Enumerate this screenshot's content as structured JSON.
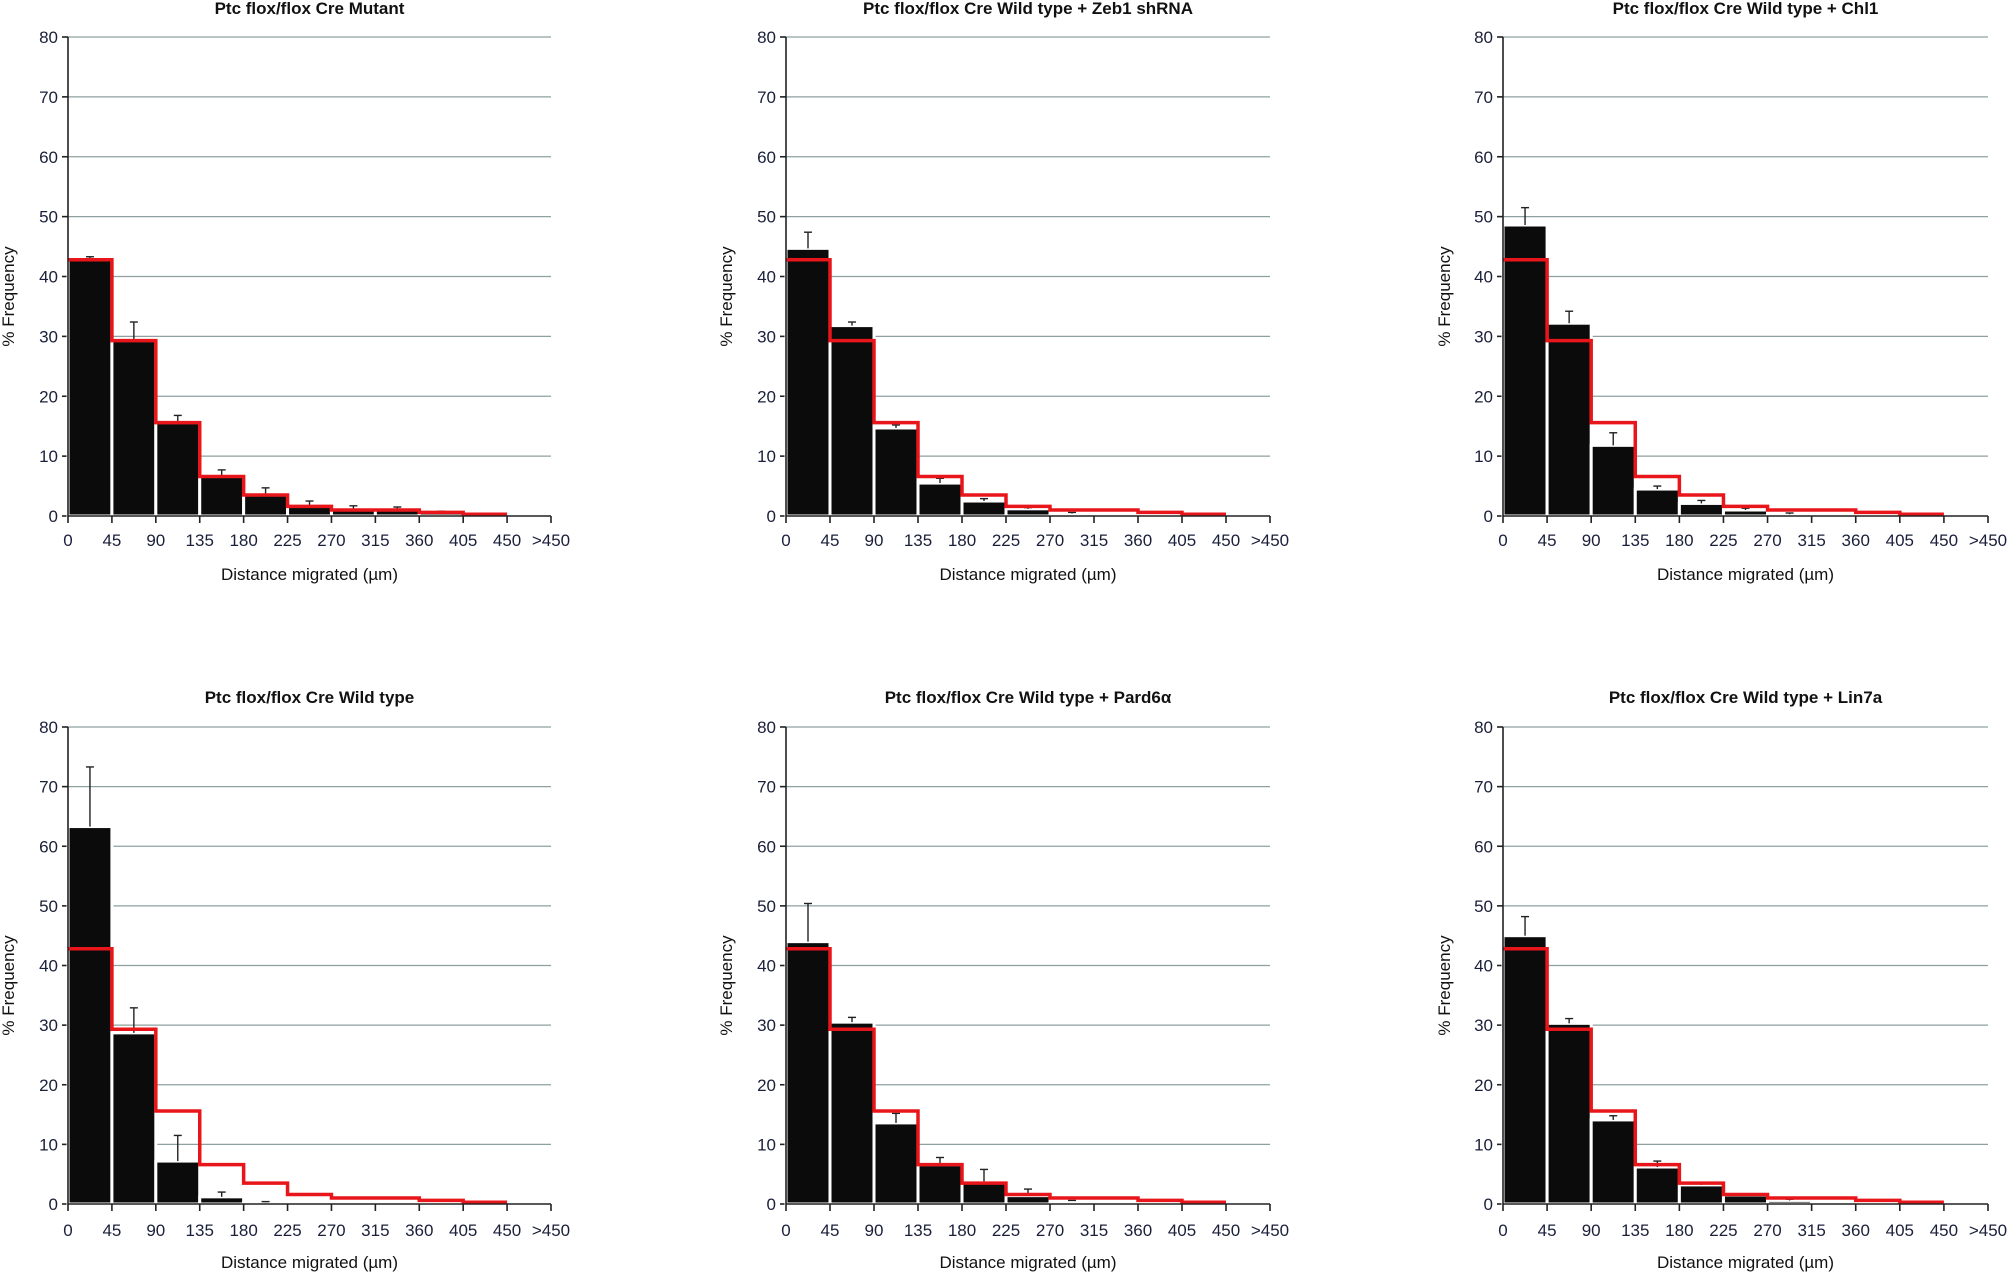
{
  "chart_data": [
    {
      "type": "bar",
      "title": "Ptc flox/flox Cre Mutant",
      "xlabel": "Distance migrated (µm)",
      "ylabel": "% Frequency",
      "ylim": [
        0,
        80
      ],
      "yticks": [
        "0",
        "10",
        "20",
        "30",
        "40",
        "50",
        "60",
        "70",
        "80"
      ],
      "xticks": [
        "0",
        "45",
        "90",
        "135",
        "180",
        "225",
        "270",
        "315",
        "360",
        "405",
        "450",
        ">450"
      ],
      "grid": true,
      "series": [
        {
          "name": "mean",
          "values": [
            42.8,
            29.3,
            15.6,
            6.6,
            3.5,
            1.6,
            1.0,
            1.0,
            0.6,
            0.3,
            0
          ],
          "err_upper": [
            43.3,
            32.4,
            16.8,
            7.7,
            4.7,
            2.5,
            1.7,
            1.5,
            0.8,
            0.4,
            0
          ]
        },
        {
          "name": "reference (Mutant)",
          "values": [
            42.8,
            29.3,
            15.6,
            6.6,
            3.5,
            1.6,
            1.0,
            1.0,
            0.6,
            0.3
          ]
        }
      ]
    },
    {
      "type": "bar",
      "title": "Ptc flox/flox Cre Wild type + Zeb1 shRNA",
      "xlabel": "Distance migrated (µm)",
      "ylabel": "% Frequency",
      "ylim": [
        0,
        80
      ],
      "yticks": [
        "0",
        "10",
        "20",
        "30",
        "40",
        "50",
        "60",
        "70",
        "80"
      ],
      "xticks": [
        "0",
        "45",
        "90",
        "135",
        "180",
        "225",
        "270",
        "315",
        "360",
        "405",
        "450",
        ">450"
      ],
      "grid": true,
      "series": [
        {
          "name": "mean",
          "values": [
            44.7,
            31.8,
            14.7,
            5.5,
            2.5,
            1.2,
            0.4,
            0.3,
            0,
            0,
            0
          ],
          "err_upper": [
            47.4,
            32.4,
            15.2,
            6.3,
            2.9,
            1.4,
            0.6,
            0.3,
            0,
            0,
            0
          ]
        },
        {
          "name": "reference (Mutant)",
          "values": [
            42.8,
            29.3,
            15.6,
            6.6,
            3.5,
            1.6,
            1.0,
            1.0,
            0.6,
            0.3
          ]
        }
      ]
    },
    {
      "type": "bar",
      "title": "Ptc flox/flox Cre Wild type + Chl1",
      "xlabel": "Distance migrated (µm)",
      "ylabel": "% Frequency",
      "ylim": [
        0,
        80
      ],
      "yticks": [
        "0",
        "10",
        "20",
        "30",
        "40",
        "50",
        "60",
        "70",
        "80"
      ],
      "xticks": [
        "0",
        "45",
        "90",
        "135",
        "180",
        "225",
        "270",
        "315",
        "360",
        "405",
        "450",
        ">450"
      ],
      "grid": true,
      "series": [
        {
          "name": "mean",
          "values": [
            48.6,
            32.2,
            11.8,
            4.5,
            2.1,
            1.0,
            0.3,
            0.2,
            0.2,
            0,
            0
          ],
          "err_upper": [
            51.5,
            34.2,
            13.9,
            5.0,
            2.6,
            1.3,
            0.5,
            0.2,
            0.2,
            0,
            0
          ]
        },
        {
          "name": "reference (Mutant)",
          "values": [
            42.8,
            29.3,
            15.6,
            6.6,
            3.5,
            1.6,
            1.0,
            1.0,
            0.6,
            0.3
          ]
        }
      ]
    },
    {
      "type": "bar",
      "title": "Ptc flox/flox Cre Wild type",
      "xlabel": "Distance migrated (µm)",
      "ylabel": "% Frequency",
      "ylim": [
        0,
        80
      ],
      "yticks": [
        "0",
        "10",
        "20",
        "30",
        "40",
        "50",
        "60",
        "70",
        "80"
      ],
      "xticks": [
        "0",
        "45",
        "90",
        "135",
        "180",
        "225",
        "270",
        "315",
        "360",
        "405",
        "450",
        ">450"
      ],
      "grid": true,
      "series": [
        {
          "name": "mean",
          "values": [
            63.3,
            28.7,
            7.2,
            1.2,
            0.3,
            0.2,
            0,
            0,
            0,
            0,
            0
          ],
          "err_upper": [
            73.3,
            32.9,
            11.5,
            2.0,
            0.4,
            0.2,
            0,
            0,
            0,
            0,
            0
          ]
        },
        {
          "name": "reference (Mutant)",
          "values": [
            42.8,
            29.3,
            15.6,
            6.6,
            3.5,
            1.6,
            1.0,
            1.0,
            0.6,
            0.3
          ]
        }
      ]
    },
    {
      "type": "bar",
      "title": "Ptc flox/flox Cre Wild type + Pard6α",
      "xlabel": "Distance migrated (µm)",
      "ylabel": "% Frequency",
      "ylim": [
        0,
        80
      ],
      "yticks": [
        "0",
        "10",
        "20",
        "30",
        "40",
        "50",
        "60",
        "70",
        "80"
      ],
      "xticks": [
        "0",
        "45",
        "90",
        "135",
        "180",
        "225",
        "270",
        "315",
        "360",
        "405",
        "450",
        ">450"
      ],
      "grid": true,
      "series": [
        {
          "name": "mean",
          "values": [
            44.0,
            30.5,
            13.6,
            6.6,
            3.8,
            1.4,
            0.5,
            0.2,
            0,
            0,
            0
          ],
          "err_upper": [
            50.4,
            31.3,
            15.2,
            7.8,
            5.8,
            2.5,
            0.6,
            0.2,
            0,
            0,
            0
          ]
        },
        {
          "name": "reference (Mutant)",
          "values": [
            42.8,
            29.3,
            15.6,
            6.6,
            3.5,
            1.6,
            1.0,
            1.0,
            0.6,
            0.3
          ]
        }
      ]
    },
    {
      "type": "bar",
      "title": "Ptc flox/flox Cre Wild type + Lin7a",
      "xlabel": "Distance migrated (µm)",
      "ylabel": "% Frequency",
      "ylim": [
        0,
        80
      ],
      "yticks": [
        "0",
        "10",
        "20",
        "30",
        "40",
        "50",
        "60",
        "70",
        "80"
      ],
      "xticks": [
        "0",
        "45",
        "90",
        "135",
        "180",
        "225",
        "270",
        "315",
        "360",
        "405",
        "450",
        ">450"
      ],
      "grid": true,
      "series": [
        {
          "name": "mean",
          "values": [
            45.0,
            30.3,
            14.1,
            6.2,
            3.2,
            1.5,
            0.6,
            0.3,
            0,
            0,
            0
          ],
          "err_upper": [
            48.2,
            31.1,
            14.8,
            7.2,
            3.4,
            1.6,
            0.8,
            0.3,
            0,
            0,
            0
          ]
        },
        {
          "name": "reference (Mutant)",
          "values": [
            42.8,
            29.3,
            15.6,
            6.6,
            3.5,
            1.6,
            1.0,
            1.0,
            0.6,
            0.3
          ]
        }
      ]
    }
  ]
}
